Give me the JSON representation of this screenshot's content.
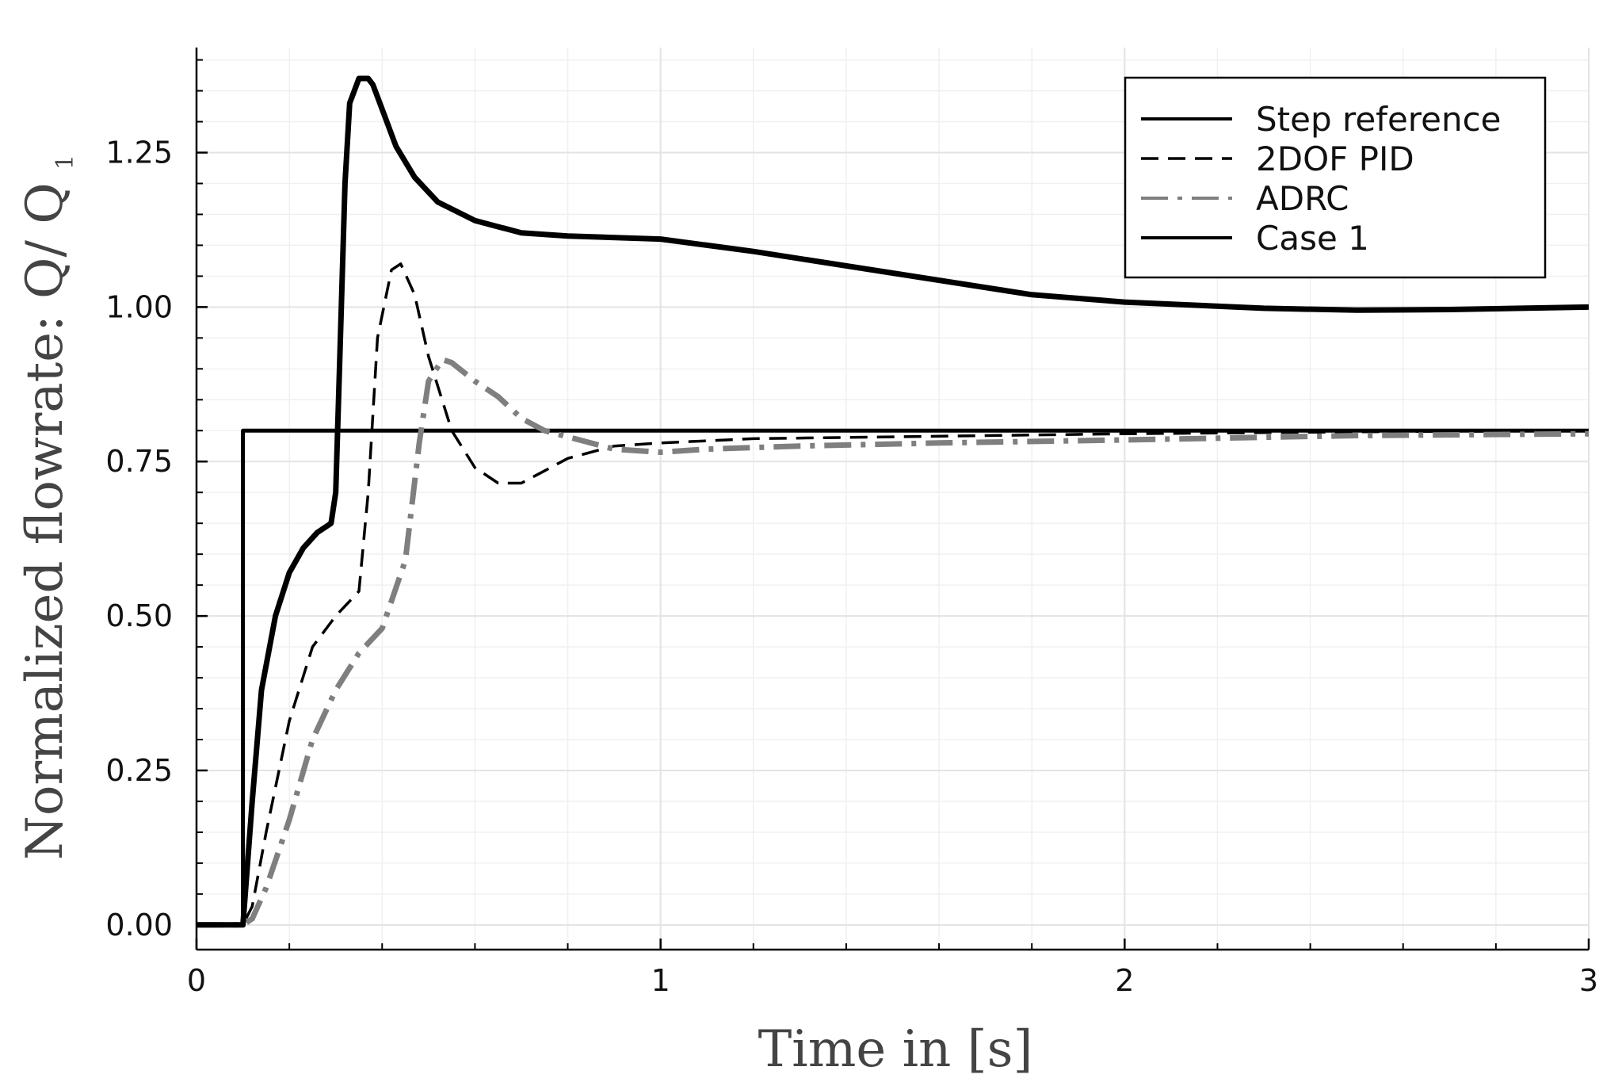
{
  "chart_data": {
    "type": "line",
    "title": "",
    "xlabel": "Time in [s]",
    "ylabel": "Normalized flowrate: Q",
    "ylabel_sep": "/ Q",
    "ylabel_subscript": "1",
    "xlim": [
      0,
      3
    ],
    "ylim": [
      -0.04,
      1.42
    ],
    "x_ticks": [
      0,
      1,
      2,
      3
    ],
    "x_tick_labels": [
      "0",
      "1",
      "2",
      "3"
    ],
    "y_ticks": [
      0,
      0.25,
      0.5,
      0.75,
      1.0,
      1.25
    ],
    "y_tick_labels": [
      "0.00",
      "0.25",
      "0.50",
      "0.75",
      "1.00",
      "1.25"
    ],
    "grid": true,
    "legend_position": "top-right",
    "series": [
      {
        "name": "Step reference",
        "style": "solid",
        "color": "#000000",
        "x": [
          0,
          0.1,
          0.1,
          3
        ],
        "y": [
          0,
          0,
          0.8,
          0.8
        ]
      },
      {
        "name": "2DOF PID",
        "style": "dashed",
        "color": "#000000",
        "x": [
          0,
          0.1,
          0.12,
          0.15,
          0.2,
          0.25,
          0.3,
          0.35,
          0.37,
          0.39,
          0.42,
          0.44,
          0.47,
          0.5,
          0.55,
          0.6,
          0.65,
          0.7,
          0.75,
          0.8,
          0.9,
          1.0,
          1.2,
          1.5,
          2.0,
          2.5,
          3.0
        ],
        "y": [
          0,
          0,
          0.03,
          0.15,
          0.33,
          0.45,
          0.5,
          0.54,
          0.7,
          0.95,
          1.06,
          1.07,
          1.02,
          0.92,
          0.8,
          0.74,
          0.715,
          0.715,
          0.735,
          0.755,
          0.775,
          0.78,
          0.787,
          0.79,
          0.795,
          0.798,
          0.8
        ]
      },
      {
        "name": "ADRC",
        "style": "dashdot",
        "color": "#7f7f7f",
        "x": [
          0,
          0.1,
          0.12,
          0.15,
          0.2,
          0.25,
          0.3,
          0.35,
          0.4,
          0.45,
          0.48,
          0.5,
          0.53,
          0.55,
          0.6,
          0.65,
          0.7,
          0.75,
          0.8,
          0.9,
          1.0,
          1.1,
          1.3,
          1.6,
          2.0,
          2.5,
          3.0
        ],
        "y": [
          0,
          0,
          0.01,
          0.06,
          0.17,
          0.3,
          0.38,
          0.44,
          0.48,
          0.59,
          0.78,
          0.88,
          0.915,
          0.91,
          0.88,
          0.855,
          0.82,
          0.8,
          0.79,
          0.77,
          0.765,
          0.77,
          0.775,
          0.78,
          0.785,
          0.792,
          0.795
        ]
      },
      {
        "name": "Case 1",
        "style": "solid-thick",
        "color": "#000000",
        "x": [
          0,
          0.1,
          0.12,
          0.14,
          0.17,
          0.2,
          0.23,
          0.26,
          0.29,
          0.3,
          0.31,
          0.32,
          0.33,
          0.35,
          0.37,
          0.38,
          0.4,
          0.43,
          0.47,
          0.52,
          0.6,
          0.7,
          0.8,
          1.0,
          1.2,
          1.5,
          1.8,
          2.0,
          2.3,
          2.5,
          2.7,
          3.0
        ],
        "y": [
          0,
          0,
          0.2,
          0.38,
          0.5,
          0.57,
          0.61,
          0.635,
          0.65,
          0.7,
          0.95,
          1.2,
          1.33,
          1.37,
          1.37,
          1.36,
          1.32,
          1.26,
          1.21,
          1.17,
          1.14,
          1.12,
          1.115,
          1.11,
          1.09,
          1.055,
          1.02,
          1.008,
          0.998,
          0.995,
          0.996,
          1.0
        ]
      }
    ]
  }
}
